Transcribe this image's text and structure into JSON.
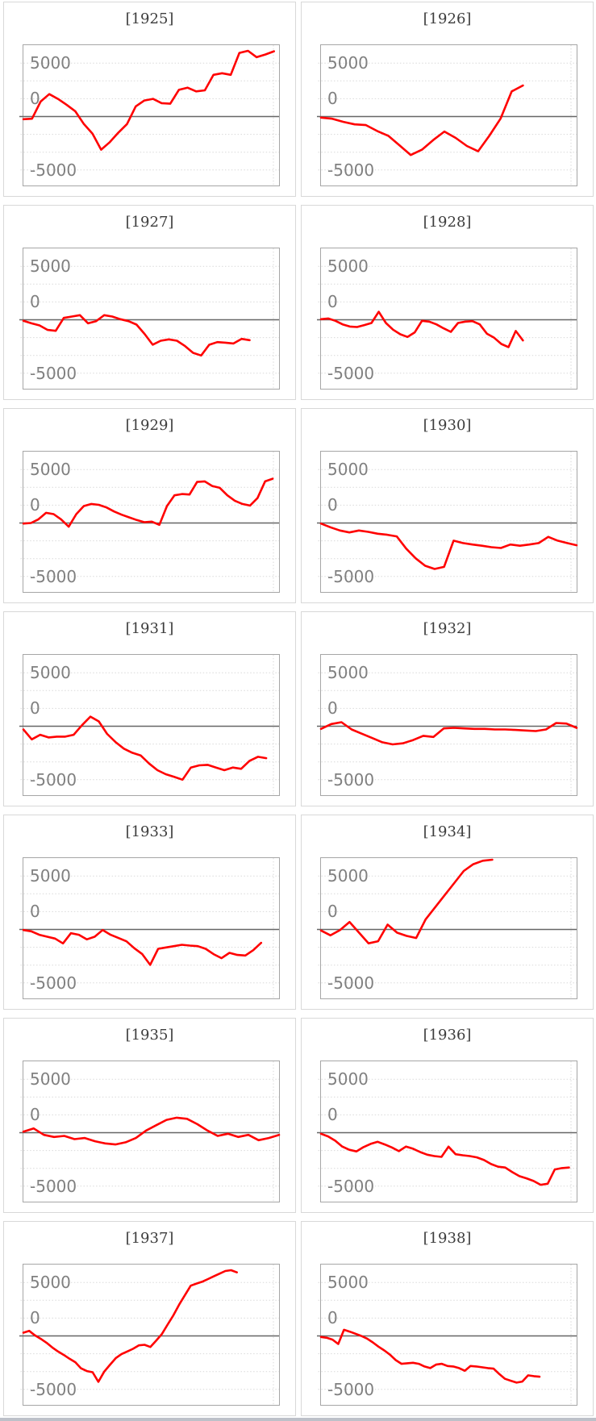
{
  "axis": {
    "tick_labels": [
      "5000",
      "0",
      "-5000"
    ],
    "zero_line": "solid",
    "dotted_gridline_count": 7
  },
  "style": {
    "series_color": "#ff0000",
    "grid_color": "#d9d9d9",
    "zero_line_color": "#666666",
    "plot_border_color": "#a6a6a6",
    "cell_border_color": "#d8d8d8",
    "title_color": "#3d3d3d",
    "label_color": "#808080",
    "bottom_bar_color": "#bdc1c9"
  },
  "chart_data": {
    "type": "line",
    "layout": "small-multiples, 7 rows x 2 columns",
    "ylim": [
      -6450,
      6675
    ],
    "y_tick_labels": [
      "5000",
      "0",
      "-5000"
    ],
    "legend": "none",
    "x_tick_labels": [],
    "grid": "horizontal dotted, solid zero axis, one dotted vertical line near right edge",
    "panels": [
      {
        "title": "[1925]",
        "year": 1925,
        "x_end": 0.98,
        "values": [
          -250,
          -200,
          1400,
          2100,
          1650,
          1100,
          500,
          -700,
          -1600,
          -3100,
          -2400,
          -1500,
          -700,
          950,
          1500,
          1650,
          1250,
          1200,
          2500,
          2700,
          2350,
          2450,
          3900,
          4050,
          3900,
          5950,
          6150,
          5550,
          5800,
          6100
        ]
      },
      {
        "title": "[1926]",
        "year": 1926,
        "x_end": 0.79,
        "values": [
          -100,
          -200,
          -500,
          -730,
          -800,
          -1350,
          -1800,
          -2700,
          -3600,
          -3100,
          -2200,
          -1400,
          -2000,
          -2750,
          -3250,
          -1800,
          -200,
          2350,
          2900
        ]
      },
      {
        "title": "[1927]",
        "year": 1927,
        "x_end": 0.885,
        "values": [
          -100,
          -330,
          -530,
          -950,
          -1030,
          175,
          300,
          430,
          -330,
          -125,
          430,
          300,
          50,
          -125,
          -450,
          -1330,
          -2330,
          -1960,
          -1835,
          -1960,
          -2460,
          -3090,
          -3340,
          -2340,
          -2090,
          -2140,
          -2215,
          -1785,
          -1910
        ]
      },
      {
        "title": "[1928]",
        "year": 1928,
        "x_end": 0.79,
        "values": [
          50,
          120,
          -100,
          -430,
          -630,
          -680,
          -500,
          -300,
          750,
          -300,
          -930,
          -1360,
          -1610,
          -1180,
          -100,
          -175,
          -430,
          -800,
          -1130,
          -300,
          -175,
          -125,
          -430,
          -1300,
          -1680,
          -2260,
          -2560,
          -1050,
          -1930
        ]
      },
      {
        "title": "[1929]",
        "year": 1929,
        "x_end": 0.975,
        "values": [
          -50,
          0,
          350,
          950,
          830,
          330,
          -350,
          830,
          1580,
          1780,
          1700,
          1455,
          1080,
          780,
          530,
          280,
          75,
          125,
          -175,
          1580,
          2585,
          2710,
          2660,
          3840,
          3890,
          3465,
          3290,
          2585,
          2080,
          1780,
          1630,
          2330,
          3890,
          4140
        ]
      },
      {
        "title": "[1930]",
        "year": 1930,
        "x_end": 1.0,
        "values": [
          -50,
          -400,
          -700,
          -880,
          -700,
          -830,
          -1000,
          -1100,
          -1255,
          -2400,
          -3300,
          -4000,
          -4300,
          -4100,
          -1650,
          -1880,
          -2010,
          -2130,
          -2260,
          -2335,
          -2010,
          -2130,
          -2010,
          -1880,
          -1300,
          -1650,
          -1880,
          -2080
        ]
      },
      {
        "title": "[1931]",
        "year": 1931,
        "x_end": 0.95,
        "values": [
          -300,
          -1230,
          -800,
          -1045,
          -970,
          -970,
          -800,
          100,
          900,
          450,
          -720,
          -1480,
          -2100,
          -2480,
          -2730,
          -3485,
          -4110,
          -4485,
          -4735,
          -5000,
          -3860,
          -3660,
          -3610,
          -3860,
          -4110,
          -3860,
          -3985,
          -3235,
          -2860,
          -2985
        ]
      },
      {
        "title": "[1932]",
        "year": 1932,
        "x_end": 1.0,
        "values": [
          -250,
          200,
          375,
          -300,
          -700,
          -1100,
          -1500,
          -1700,
          -1600,
          -1300,
          -900,
          -1000,
          -200,
          -150,
          -200,
          -250,
          -250,
          -300,
          -300,
          -350,
          -400,
          -450,
          -300,
          300,
          250,
          -150
        ]
      },
      {
        "title": "[1933]",
        "year": 1933,
        "x_end": 0.93,
        "values": [
          -50,
          -175,
          -500,
          -680,
          -855,
          -1305,
          -350,
          -500,
          -930,
          -680,
          -50,
          -500,
          -800,
          -1105,
          -1760,
          -2310,
          -3310,
          -1810,
          -1680,
          -1560,
          -1430,
          -1505,
          -1560,
          -1810,
          -2310,
          -2685,
          -2185,
          -2385,
          -2435,
          -1935,
          -1255
        ]
      },
      {
        "title": "[1934]",
        "year": 1934,
        "x_end": 0.67,
        "values": [
          -100,
          -550,
          -50,
          700,
          -300,
          -1300,
          -1100,
          450,
          -300,
          -600,
          -800,
          950,
          2080,
          3210,
          4340,
          5470,
          6100,
          6425,
          6525
        ]
      },
      {
        "title": "[1935]",
        "year": 1935,
        "x_end": 1.0,
        "values": [
          100,
          400,
          -200,
          -400,
          -300,
          -600,
          -500,
          -800,
          -1000,
          -1100,
          -900,
          -500,
          200,
          700,
          1200,
          1400,
          1300,
          800,
          200,
          -300,
          -100,
          -400,
          -200,
          -700,
          -500,
          -200
        ]
      },
      {
        "title": "[1936]",
        "year": 1936,
        "x_end": 0.97,
        "values": [
          -100,
          -350,
          -750,
          -1300,
          -1600,
          -1750,
          -1350,
          -1050,
          -850,
          -1100,
          -1380,
          -1730,
          -1300,
          -1500,
          -1810,
          -2060,
          -2185,
          -2260,
          -1305,
          -2010,
          -2110,
          -2185,
          -2310,
          -2560,
          -2935,
          -3185,
          -3260,
          -3690,
          -4065,
          -4265,
          -4515,
          -4870,
          -4770,
          -3440,
          -3310,
          -3260
        ]
      },
      {
        "title": "[1937]",
        "year": 1937,
        "x_end": 0.835,
        "values": [
          300,
          475,
          50,
          -275,
          -630,
          -1080,
          -1455,
          -1780,
          -2135,
          -2460,
          -3035,
          -3290,
          -3390,
          -4290,
          -3340,
          -2710,
          -2085,
          -1705,
          -1455,
          -1205,
          -880,
          -830,
          -1030,
          -450,
          175,
          1055,
          1930,
          2935,
          3815,
          4695,
          4895,
          5070,
          5320,
          5570,
          5820,
          6070,
          6145,
          5945
        ]
      },
      {
        "title": "[1938]",
        "year": 1938,
        "x_end": 0.855,
        "values": [
          -100,
          -175,
          -350,
          -755,
          575,
          400,
          200,
          0,
          -250,
          -600,
          -1005,
          -1355,
          -1755,
          -2260,
          -2610,
          -2560,
          -2510,
          -2610,
          -2860,
          -3010,
          -2685,
          -2610,
          -2810,
          -2860,
          -3010,
          -3260,
          -2810,
          -2860,
          -2935,
          -3010,
          -3060,
          -3565,
          -4015,
          -4190,
          -4365,
          -4265,
          -3690,
          -3765,
          -3815
        ]
      }
    ]
  }
}
